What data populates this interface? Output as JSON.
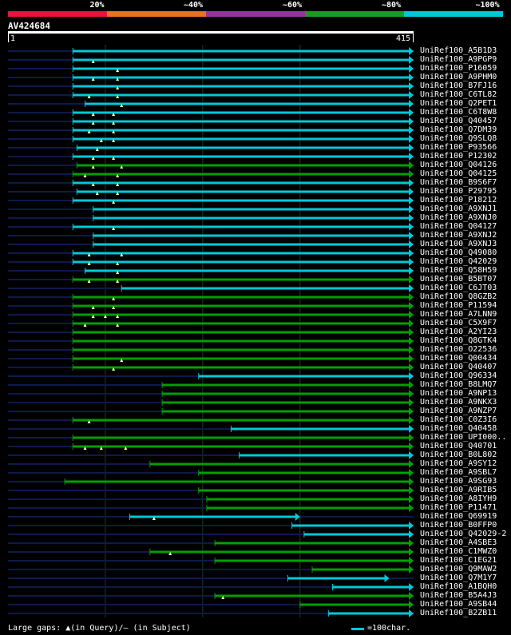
{
  "colors": {
    "cyan": "#00c8d8",
    "green": "#00a000",
    "navy": "#0c1a4a",
    "grid": "#1f3a1f",
    "gap": "#ffff99"
  },
  "identity_scale": [
    {
      "label": "20%",
      "color": "#e8143c"
    },
    {
      "label": "~40%",
      "color": "#e8731e"
    },
    {
      "label": "~60%",
      "color": "#9b2f9b"
    },
    {
      "label": "~80%",
      "color": "#14a01e"
    },
    {
      "label": "~100%",
      "color": "#00c8d8"
    }
  ],
  "query": {
    "id": "AV424684",
    "start": "1",
    "end": "415"
  },
  "hits": [
    {
      "name": "UniRef100_A5B1D3",
      "color": "cyan",
      "start": 0.16,
      "end": 1.0,
      "gaps": []
    },
    {
      "name": "UniRef100_A9PGP9",
      "color": "cyan",
      "start": 0.16,
      "end": 1.0,
      "gaps": [
        0.21
      ]
    },
    {
      "name": "UniRef100_P16059",
      "color": "cyan",
      "start": 0.16,
      "end": 1.0,
      "gaps": [
        0.27
      ]
    },
    {
      "name": "UniRef100_A9PHM0",
      "color": "cyan",
      "start": 0.16,
      "end": 1.0,
      "gaps": [
        0.21,
        0.27
      ]
    },
    {
      "name": "UniRef100_B7FJ16",
      "color": "cyan",
      "start": 0.16,
      "end": 1.0,
      "gaps": [
        0.27
      ]
    },
    {
      "name": "UniRef100_C6TL82",
      "color": "cyan",
      "start": 0.16,
      "end": 1.0,
      "gaps": [
        0.2,
        0.27
      ]
    },
    {
      "name": "UniRef100_Q2PET1",
      "color": "cyan",
      "start": 0.19,
      "end": 1.0,
      "gaps": [
        0.28
      ]
    },
    {
      "name": "UniRef100_C6T8W8",
      "color": "cyan",
      "start": 0.16,
      "end": 1.0,
      "gaps": [
        0.21,
        0.26
      ]
    },
    {
      "name": "UniRef100_Q40457",
      "color": "cyan",
      "start": 0.16,
      "end": 1.0,
      "gaps": [
        0.21,
        0.26
      ]
    },
    {
      "name": "UniRef100_Q7DM39",
      "color": "cyan",
      "start": 0.16,
      "end": 1.0,
      "gaps": [
        0.2,
        0.26
      ]
    },
    {
      "name": "UniRef100_Q9SLQ8",
      "color": "cyan",
      "start": 0.16,
      "end": 1.0,
      "gaps": [
        0.23,
        0.26
      ]
    },
    {
      "name": "UniRef100_P93566",
      "color": "cyan",
      "start": 0.17,
      "end": 1.0,
      "gaps": [
        0.22
      ]
    },
    {
      "name": "UniRef100_P12302",
      "color": "cyan",
      "start": 0.16,
      "end": 1.0,
      "gaps": [
        0.21,
        0.26
      ]
    },
    {
      "name": "UniRef100_Q04126",
      "color": "green",
      "start": 0.17,
      "end": 1.0,
      "gaps": [
        0.21,
        0.28
      ]
    },
    {
      "name": "UniRef100_Q04125",
      "color": "green",
      "start": 0.16,
      "end": 1.0,
      "gaps": [
        0.19,
        0.27
      ]
    },
    {
      "name": "UniRef100_B9S6F7",
      "color": "cyan",
      "start": 0.16,
      "end": 1.0,
      "gaps": [
        0.21,
        0.27
      ]
    },
    {
      "name": "UniRef100_P29795",
      "color": "cyan",
      "start": 0.17,
      "end": 1.0,
      "gaps": [
        0.22,
        0.27
      ]
    },
    {
      "name": "UniRef100_P18212",
      "color": "cyan",
      "start": 0.16,
      "end": 1.0,
      "gaps": [
        0.26
      ]
    },
    {
      "name": "UniRef100_A9XNJ1",
      "color": "cyan",
      "start": 0.21,
      "end": 1.0,
      "gaps": []
    },
    {
      "name": "UniRef100_A9XNJ0",
      "color": "cyan",
      "start": 0.21,
      "end": 1.0,
      "gaps": []
    },
    {
      "name": "UniRef100_Q04127",
      "color": "cyan",
      "start": 0.16,
      "end": 1.0,
      "gaps": [
        0.26
      ]
    },
    {
      "name": "UniRef100_A9XNJ2",
      "color": "cyan",
      "start": 0.21,
      "end": 1.0,
      "gaps": []
    },
    {
      "name": "UniRef100_A9XNJ3",
      "color": "cyan",
      "start": 0.21,
      "end": 1.0,
      "gaps": []
    },
    {
      "name": "UniRef100_Q49080",
      "color": "cyan",
      "start": 0.16,
      "end": 1.0,
      "gaps": [
        0.2,
        0.28
      ]
    },
    {
      "name": "UniRef100_Q42029",
      "color": "cyan",
      "start": 0.16,
      "end": 1.0,
      "gaps": [
        0.2,
        0.27
      ]
    },
    {
      "name": "UniRef100_Q58H59",
      "color": "cyan",
      "start": 0.19,
      "end": 1.0,
      "gaps": [
        0.27
      ]
    },
    {
      "name": "UniRef100_B5BT07",
      "color": "green",
      "start": 0.16,
      "end": 1.0,
      "gaps": [
        0.2,
        0.27
      ]
    },
    {
      "name": "UniRef100_C6JT03",
      "color": "cyan",
      "start": 0.28,
      "end": 1.0,
      "gaps": []
    },
    {
      "name": "UniRef100_Q8GZB2",
      "color": "green",
      "start": 0.16,
      "end": 1.0,
      "gaps": [
        0.26
      ]
    },
    {
      "name": "UniRef100_P11594",
      "color": "green",
      "start": 0.16,
      "end": 1.0,
      "gaps": [
        0.21,
        0.26
      ]
    },
    {
      "name": "UniRef100_A7LNN9",
      "color": "green",
      "start": 0.16,
      "end": 1.0,
      "gaps": [
        0.21,
        0.24,
        0.27
      ]
    },
    {
      "name": "UniRef100_C5X9F7",
      "color": "green",
      "start": 0.16,
      "end": 1.0,
      "gaps": [
        0.19,
        0.27
      ]
    },
    {
      "name": "UniRef100_A2YI23",
      "color": "green",
      "start": 0.16,
      "end": 1.0,
      "gaps": []
    },
    {
      "name": "UniRef100_Q8GTK4",
      "color": "green",
      "start": 0.16,
      "end": 1.0,
      "gaps": []
    },
    {
      "name": "UniRef100_O22536",
      "color": "green",
      "start": 0.16,
      "end": 1.0,
      "gaps": []
    },
    {
      "name": "UniRef100_Q00434",
      "color": "green",
      "start": 0.16,
      "end": 1.0,
      "gaps": [
        0.28
      ]
    },
    {
      "name": "UniRef100_Q40407",
      "color": "green",
      "start": 0.16,
      "end": 1.0,
      "gaps": [
        0.26
      ]
    },
    {
      "name": "UniRef100_Q96334",
      "color": "cyan",
      "start": 0.47,
      "end": 1.0,
      "gaps": []
    },
    {
      "name": "UniRef100_B8LMQ7",
      "color": "green",
      "start": 0.38,
      "end": 1.0,
      "gaps": []
    },
    {
      "name": "UniRef100_A9NP13",
      "color": "green",
      "start": 0.38,
      "end": 1.0,
      "gaps": []
    },
    {
      "name": "UniRef100_A9NKX3",
      "color": "green",
      "start": 0.38,
      "end": 1.0,
      "gaps": []
    },
    {
      "name": "UniRef100_A9NZP7",
      "color": "green",
      "start": 0.38,
      "end": 1.0,
      "gaps": []
    },
    {
      "name": "UniRef100_C0Z3I6",
      "color": "green",
      "start": 0.16,
      "end": 1.0,
      "gaps": [
        0.2
      ]
    },
    {
      "name": "UniRef100_Q40458",
      "color": "cyan",
      "start": 0.55,
      "end": 1.0,
      "gaps": []
    },
    {
      "name": "UniRef100_UPI000..",
      "color": "green",
      "start": 0.16,
      "end": 1.0,
      "gaps": []
    },
    {
      "name": "UniRef100_Q40701",
      "color": "green",
      "start": 0.16,
      "end": 1.0,
      "gaps": [
        0.19,
        0.23,
        0.29
      ]
    },
    {
      "name": "UniRef100_B0L802",
      "color": "cyan",
      "start": 0.57,
      "end": 1.0,
      "gaps": []
    },
    {
      "name": "UniRef100_A9SY12",
      "color": "green",
      "start": 0.35,
      "end": 1.0,
      "gaps": []
    },
    {
      "name": "UniRef100_A9SBL7",
      "color": "green",
      "start": 0.47,
      "end": 1.0,
      "gaps": []
    },
    {
      "name": "UniRef100_A9SG93",
      "color": "green",
      "start": 0.14,
      "end": 1.0,
      "gaps": []
    },
    {
      "name": "UniRef100_A9RIB5",
      "color": "green",
      "start": 0.47,
      "end": 1.0,
      "gaps": []
    },
    {
      "name": "UniRef100_A8IYH9",
      "color": "green",
      "start": 0.49,
      "end": 1.0,
      "gaps": []
    },
    {
      "name": "UniRef100_P11471",
      "color": "green",
      "start": 0.49,
      "end": 1.0,
      "gaps": []
    },
    {
      "name": "UniRef100_Q69919",
      "color": "cyan",
      "start": 0.3,
      "end": 0.72,
      "gaps": [
        0.36
      ]
    },
    {
      "name": "UniRef100_B0FFP0",
      "color": "cyan",
      "start": 0.7,
      "end": 1.0,
      "gaps": []
    },
    {
      "name": "UniRef100_Q42029-2",
      "color": "cyan",
      "start": 0.73,
      "end": 1.0,
      "gaps": []
    },
    {
      "name": "UniRef100_A4SBE3",
      "color": "green",
      "start": 0.51,
      "end": 1.0,
      "gaps": []
    },
    {
      "name": "UniRef100_C1MWZ0",
      "color": "green",
      "start": 0.35,
      "end": 1.0,
      "gaps": [
        0.4
      ]
    },
    {
      "name": "UniRef100_C1EG21",
      "color": "green",
      "start": 0.51,
      "end": 1.0,
      "gaps": []
    },
    {
      "name": "UniRef100_Q9MAW2",
      "color": "green",
      "start": 0.75,
      "end": 1.0,
      "gaps": []
    },
    {
      "name": "UniRef100_Q7M1Y7",
      "color": "cyan",
      "start": 0.69,
      "end": 0.94,
      "gaps": []
    },
    {
      "name": "UniRef100_A1BQH0",
      "color": "cyan",
      "start": 0.8,
      "end": 1.0,
      "gaps": []
    },
    {
      "name": "UniRef100_B5A4J3",
      "color": "green",
      "start": 0.51,
      "end": 1.0,
      "gaps": [
        0.53
      ]
    },
    {
      "name": "UniRef100_A9SB44",
      "color": "green",
      "start": 0.72,
      "end": 1.0,
      "gaps": []
    },
    {
      "name": "UniRef100_B2ZB11",
      "color": "cyan",
      "start": 0.79,
      "end": 1.0,
      "gaps": []
    }
  ],
  "legend": {
    "large_gaps": "Large gaps: ▲(in Query)/– (in Subject)",
    "scale_text": "=100char."
  }
}
